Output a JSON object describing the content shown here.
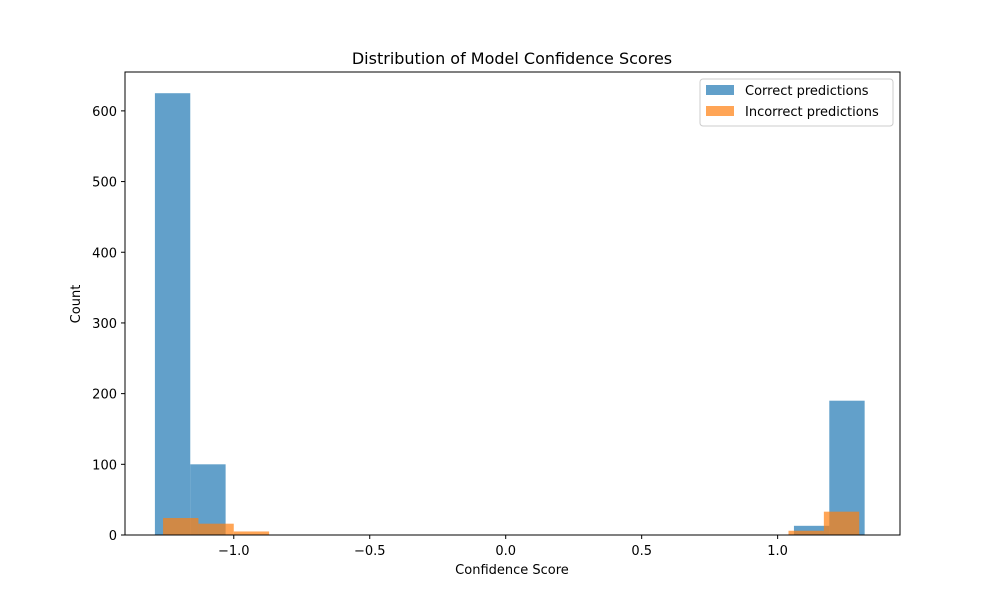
{
  "chart_data": {
    "type": "bar",
    "title": "Distribution of Model Confidence Scores",
    "xlabel": "Confidence Score",
    "ylabel": "Count",
    "xlim": [
      -1.4,
      1.45
    ],
    "ylim": [
      0,
      655
    ],
    "xticks": [
      {
        "value": -1.0,
        "label": "−1.0"
      },
      {
        "value": -0.5,
        "label": "−0.5"
      },
      {
        "value": 0.0,
        "label": "0.0"
      },
      {
        "value": 0.5,
        "label": "0.5"
      },
      {
        "value": 1.0,
        "label": "1.0"
      }
    ],
    "yticks": [
      {
        "value": 0,
        "label": "0"
      },
      {
        "value": 100,
        "label": "100"
      },
      {
        "value": 200,
        "label": "200"
      },
      {
        "value": 300,
        "label": "300"
      },
      {
        "value": 400,
        "label": "400"
      },
      {
        "value": 500,
        "label": "500"
      },
      {
        "value": 600,
        "label": "600"
      }
    ],
    "grid": false,
    "legend_position": "top-right",
    "series": [
      {
        "name": "Correct predictions",
        "color": "#1f77b4",
        "opacity": 0.7,
        "bins": [
          {
            "x0": -1.29,
            "x1": -1.16,
            "count": 625
          },
          {
            "x0": -1.16,
            "x1": -1.03,
            "count": 100
          },
          {
            "x0": 1.06,
            "x1": 1.19,
            "count": 13
          },
          {
            "x0": 1.19,
            "x1": 1.32,
            "count": 190
          }
        ]
      },
      {
        "name": "Incorrect predictions",
        "color": "#ff7f0e",
        "opacity": 0.7,
        "bins": [
          {
            "x0": -1.26,
            "x1": -1.13,
            "count": 24
          },
          {
            "x0": -1.13,
            "x1": -1.0,
            "count": 16
          },
          {
            "x0": -1.0,
            "x1": -0.87,
            "count": 5
          },
          {
            "x0": 1.04,
            "x1": 1.17,
            "count": 6
          },
          {
            "x0": 1.17,
            "x1": 1.3,
            "count": 33
          }
        ]
      }
    ]
  }
}
